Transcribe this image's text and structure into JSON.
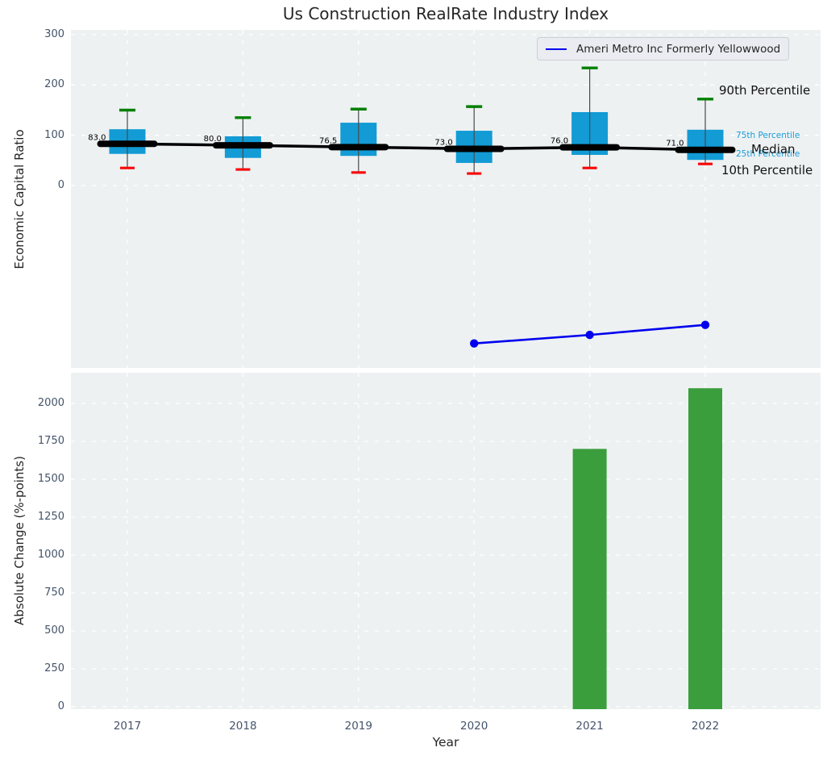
{
  "figure": {
    "title": "Us Construction RealRate Industry Index"
  },
  "colors": {
    "axes_bg": "#edf1f2",
    "grid": "#ffffff",
    "box_fill": "#129bd5",
    "whisker_line": "#4a4a4a",
    "p90_cap": "#008000",
    "p10_cap": "#f90606",
    "median_line": "#000000",
    "company_line": "#0000ee",
    "bar_fill": "#3a9e3c",
    "tick_text": "#44546a",
    "label_text": "#262626"
  },
  "chart_data": [
    {
      "type": "box",
      "title": "Us Construction RealRate Industry Index",
      "ylabel": "Economic Capital Ratio",
      "yticks": [
        0,
        100,
        200,
        300
      ],
      "ylim": [
        -363,
        310
      ],
      "grid": true,
      "legend_position": "upper right",
      "categories": [
        2017,
        2018,
        2019,
        2020,
        2021,
        2022
      ],
      "boxes": [
        {
          "year": 2017,
          "p10": 35,
          "q1": 63,
          "median": 83.0,
          "q3": 112,
          "p90": 150
        },
        {
          "year": 2018,
          "p10": 32,
          "q1": 55,
          "median": 80.0,
          "q3": 98,
          "p90": 135
        },
        {
          "year": 2019,
          "p10": 26,
          "q1": 59,
          "median": 76.5,
          "q3": 125,
          "p90": 152
        },
        {
          "year": 2020,
          "p10": 24,
          "q1": 45,
          "median": 73.0,
          "q3": 109,
          "p90": 157
        },
        {
          "year": 2021,
          "p10": 35,
          "q1": 61,
          "median": 76.0,
          "q3": 146,
          "p90": 234
        },
        {
          "year": 2022,
          "p10": 43,
          "q1": 51,
          "median": 71.0,
          "q3": 111,
          "p90": 172
        }
      ],
      "median_labels": [
        "83.0",
        "80.0",
        "76.5",
        "73.0",
        "76.0",
        "71.0"
      ],
      "series": [
        {
          "name": "Ameri Metro Inc Formerly Yellowwood",
          "x": [
            2020,
            2021,
            2022
          ],
          "y": [
            -314,
            -297,
            -277
          ]
        }
      ],
      "annotations": [
        {
          "text": "90th Percentile",
          "style": "big"
        },
        {
          "text": "75th Percentile",
          "style": "small"
        },
        {
          "text": "25th Percentile",
          "style": "small"
        },
        {
          "text": "Median",
          "style": "big"
        },
        {
          "text": "10th Percentile",
          "style": "big"
        }
      ]
    },
    {
      "type": "bar",
      "ylabel": "Absolute Change (%-points)",
      "xlabel": "Year",
      "yticks": [
        0,
        250,
        500,
        750,
        1000,
        1250,
        1500,
        1750,
        2000
      ],
      "ylim": [
        0,
        2200
      ],
      "grid": true,
      "categories": [
        2017,
        2018,
        2019,
        2020,
        2021,
        2022
      ],
      "values": [
        null,
        null,
        null,
        null,
        1700,
        2100
      ]
    }
  ]
}
